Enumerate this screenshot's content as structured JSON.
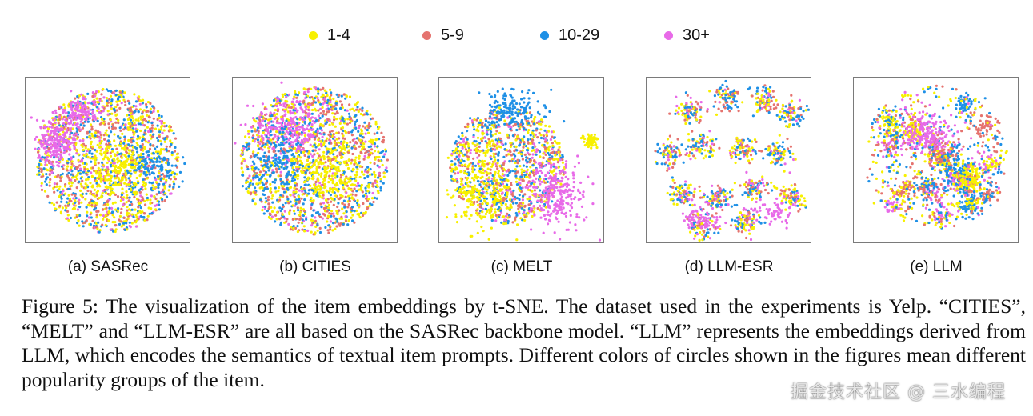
{
  "legend": [
    {
      "label": "1-4",
      "color": "#f7f000"
    },
    {
      "label": "5-9",
      "color": "#e5736f"
    },
    {
      "label": "10-29",
      "color": "#1e90e6"
    },
    {
      "label": "30+",
      "color": "#e86ae8"
    }
  ],
  "panels": [
    {
      "label": "(a) SASRec"
    },
    {
      "label": "(b) CITIES"
    },
    {
      "label": "(c) MELT"
    },
    {
      "label": "(d) LLM-ESR"
    },
    {
      "label": "(e) LLM"
    }
  ],
  "caption": "Figure 5: The visualization of the item embeddings by t-SNE. The dataset used in the experiments is Yelp. “CITIES”, “MELT” and “LLM-ESR” are all based on the SASRec backbone model. “LLM” represents the embeddings derived from LLM, which encodes the semantics of textual item prompts. Different colors of circles shown in the figures mean different popularity groups of the item.",
  "watermark": "掘金技术社区 @ 三水编程",
  "chart_data": {
    "type": "scatter",
    "description_free": true,
    "series": [
      {
        "name": "1-4",
        "color": "#f7f000"
      },
      {
        "name": "5-9",
        "color": "#e5736f"
      },
      {
        "name": "10-29",
        "color": "#1e90e6"
      },
      {
        "name": "30+",
        "color": "#e86ae8"
      }
    ],
    "panels": [
      "(a) SASRec",
      "(b) CITIES",
      "(c) MELT",
      "(d) LLM-ESR",
      "(e) LLM"
    ],
    "axes": "none",
    "grid": false,
    "legend_position": "top"
  }
}
